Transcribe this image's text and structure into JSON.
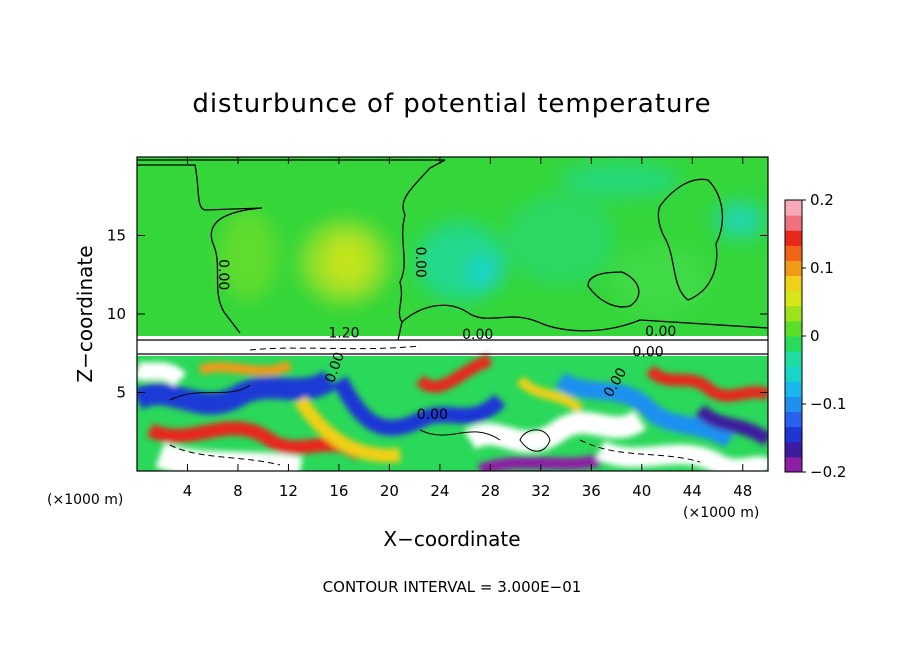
{
  "chart_data": {
    "type": "heatmap",
    "title": "disturbunce of potential temperature",
    "xlabel": "X−coordinate",
    "ylabel": "Z−coordinate",
    "x_units_left": "(×1000 m)",
    "x_units_right": "(×1000 m)",
    "xlim": [
      0,
      50
    ],
    "ylim": [
      0,
      20
    ],
    "x_ticks": [
      4,
      8,
      12,
      16,
      20,
      24,
      28,
      32,
      36,
      40,
      44,
      48
    ],
    "y_ticks": [
      5,
      10,
      15
    ],
    "footer": "CONTOUR INTERVAL = 3.000E−01",
    "colorbar": {
      "range": [
        -0.2,
        0.2
      ],
      "tick_values": [
        0.2,
        0.1,
        0,
        -0.1,
        -0.2
      ],
      "tick_labels": [
        "0.2",
        "0.1",
        "0",
        "−0.1",
        "−0.2"
      ],
      "colors": [
        "#8e1fa5",
        "#3d1a9e",
        "#1f35d6",
        "#2a62f0",
        "#1e90f0",
        "#18b8ee",
        "#19d4c8",
        "#20dca0",
        "#28dc5a",
        "#5ade28",
        "#9ee21e",
        "#d6e61a",
        "#f0d018",
        "#f09a18",
        "#f06418",
        "#e8281a",
        "#f07080",
        "#f8aab8"
      ]
    },
    "contour_labels": [
      {
        "text": "0.00",
        "x": 6.5,
        "z": 12.5,
        "rot": 90
      },
      {
        "text": "0.00",
        "x": 22.1,
        "z": 13.3,
        "rot": 90
      },
      {
        "text": "0.00",
        "x": 16.0,
        "z": 6.5,
        "rot": -70
      },
      {
        "text": "0.00",
        "x": 23.4,
        "z": 3.3,
        "rot": 0
      },
      {
        "text": "0.00",
        "x": 27.0,
        "z": 8.4,
        "rot": 0
      },
      {
        "text": "1.20",
        "x": 16.4,
        "z": 8.5,
        "rot": 0
      },
      {
        "text": "0.00",
        "x": 41.5,
        "z": 8.6,
        "rot": 0
      },
      {
        "text": "0.00",
        "x": 40.5,
        "z": 7.3,
        "rot": 0
      },
      {
        "text": "0.00",
        "x": 38.2,
        "z": 5.5,
        "rot": -60
      }
    ]
  }
}
